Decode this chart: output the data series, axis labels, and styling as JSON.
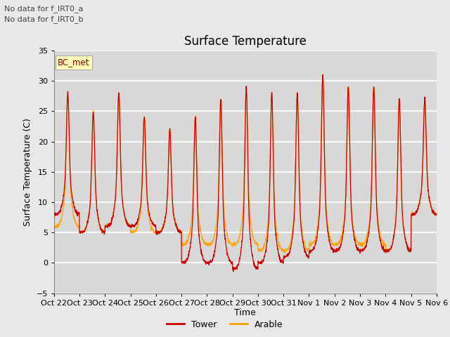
{
  "title": "Surface Temperature",
  "ylabel": "Surface Temperature (C)",
  "xlabel": "Time",
  "annotation_lines": [
    "No data for f_IRT0_a",
    "No data for f_IRT0_b"
  ],
  "bc_met_label": "BC_met",
  "legend_entries": [
    "Tower",
    "Arable"
  ],
  "legend_colors": [
    "#cc0000",
    "#ffa500"
  ],
  "ylim": [
    -5,
    35
  ],
  "yticks": [
    -5,
    0,
    5,
    10,
    15,
    20,
    25,
    30,
    35
  ],
  "xtick_labels": [
    "Oct 22",
    "Oct 23",
    "Oct 24",
    "Oct 25",
    "Oct 26",
    "Oct 27",
    "Oct 28",
    "Oct 29",
    "Oct 30",
    "Oct 31",
    "Nov 1",
    "Nov 2",
    "Nov 3",
    "Nov 4",
    "Nov 5",
    "Nov 6"
  ],
  "n_days": 15,
  "fig_bg_color": "#e8e8e8",
  "plot_bg_color": "#d8d8d8",
  "grid_color": "#ffffff",
  "tower_color": "#cc0000",
  "arable_color": "#ffa500",
  "title_fontsize": 12,
  "label_fontsize": 9,
  "tick_fontsize": 8,
  "day_peaks": [
    28,
    25,
    28,
    24,
    22,
    24,
    27,
    29,
    28,
    28,
    31,
    29,
    29,
    27,
    27
  ],
  "day_mins_tower": [
    8,
    5,
    6,
    6,
    5,
    0,
    0,
    -1,
    0,
    1,
    2,
    2,
    2,
    2,
    8
  ],
  "day_mins_arable": [
    6,
    5,
    6,
    5,
    5,
    3,
    3,
    3,
    2,
    2,
    3,
    3,
    3,
    2,
    8
  ]
}
